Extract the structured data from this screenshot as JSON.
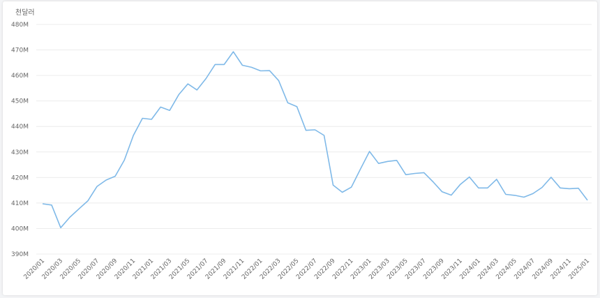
{
  "chart_data": {
    "type": "line",
    "unit_label": "천달러",
    "y_tick_labels": [
      "390M",
      "400M",
      "410M",
      "420M",
      "430M",
      "440M",
      "450M",
      "460M",
      "470M",
      "480M"
    ],
    "y_tick_values": [
      390,
      400,
      410,
      420,
      430,
      440,
      450,
      460,
      470,
      480
    ],
    "ylim": [
      390,
      480
    ],
    "grid": true,
    "line_color": "#7fb9e8",
    "x": [
      "2020/01",
      "2020/02",
      "2020/03",
      "2020/04",
      "2020/05",
      "2020/06",
      "2020/07",
      "2020/08",
      "2020/09",
      "2020/10",
      "2020/11",
      "2020/12",
      "2021/01",
      "2021/02",
      "2021/03",
      "2021/04",
      "2021/05",
      "2021/06",
      "2021/07",
      "2021/08",
      "2021/09",
      "2021/10",
      "2021/11",
      "2021/12",
      "2022/01",
      "2022/02",
      "2022/03",
      "2022/04",
      "2022/05",
      "2022/06",
      "2022/07",
      "2022/08",
      "2022/09",
      "2022/10",
      "2022/11",
      "2022/12",
      "2023/01",
      "2023/02",
      "2023/03",
      "2023/04",
      "2023/05",
      "2023/06",
      "2023/07",
      "2023/08",
      "2023/09",
      "2023/10",
      "2023/11",
      "2023/12",
      "2024/01",
      "2024/02",
      "2024/03",
      "2024/04",
      "2024/05",
      "2024/06",
      "2024/07",
      "2024/08",
      "2024/09",
      "2024/10",
      "2024/11",
      "2024/12",
      "2025/01"
    ],
    "x_tick_labels": [
      "2020/01",
      "2020/03",
      "2020/05",
      "2020/07",
      "2020/09",
      "2020/11",
      "2021/01",
      "2021/03",
      "2021/05",
      "2021/07",
      "2021/09",
      "2021/11",
      "2022/01",
      "2022/03",
      "2022/05",
      "2022/07",
      "2022/09",
      "2022/11",
      "2023/01",
      "2023/03",
      "2023/05",
      "2023/07",
      "2023/09",
      "2023/11",
      "2024/01",
      "2024/03",
      "2024/05",
      "2024/07",
      "2024/09",
      "2024/11",
      "2025/01"
    ],
    "values": [
      409.7,
      409.2,
      400.3,
      404.4,
      407.7,
      410.9,
      416.5,
      419.0,
      420.5,
      426.8,
      436.5,
      443.2,
      442.8,
      447.6,
      446.3,
      452.5,
      456.7,
      454.3,
      458.8,
      464.3,
      464.3,
      469.3,
      464.0,
      463.2,
      461.8,
      461.9,
      458.0,
      449.3,
      447.8,
      438.5,
      438.7,
      436.5,
      417.0,
      414.2,
      416.2,
      423.3,
      430.2,
      425.5,
      426.3,
      426.7,
      421.1,
      421.6,
      421.9,
      418.3,
      414.4,
      413.1,
      417.3,
      420.2,
      415.9,
      415.9,
      419.3,
      413.4,
      413.0,
      412.3,
      413.7,
      416.1,
      420.1,
      415.9,
      415.6,
      415.8,
      411.1
    ]
  }
}
